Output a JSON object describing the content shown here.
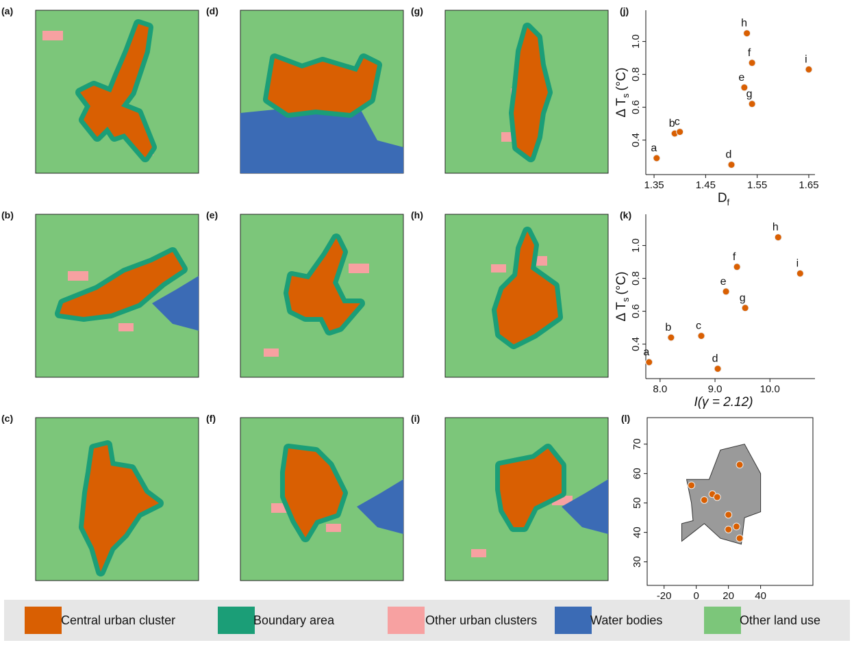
{
  "panels": [
    "(a)",
    "(b)",
    "(c)",
    "(d)",
    "(e)",
    "(f)",
    "(g)",
    "(h)",
    "(i)"
  ],
  "chart_data": [
    {
      "type": "scatter",
      "title": "(j)",
      "x_label": "D",
      "x_label_sub": "f",
      "y_label": "Δ T",
      "y_label_sub": "s",
      "y_label_unit": "(°C)",
      "x": [
        1.355,
        1.39,
        1.4,
        1.5,
        1.525,
        1.54,
        1.54,
        1.53,
        1.65
      ],
      "values": [
        0.29,
        0.44,
        0.45,
        0.25,
        0.72,
        0.87,
        0.62,
        1.05,
        0.83
      ],
      "point_labels": [
        "a",
        "b",
        "c",
        "d",
        "e",
        "f",
        "g",
        "h",
        "i"
      ],
      "color": "#d95f02",
      "xlim": [
        1.334,
        1.662
      ],
      "xticks": [
        1.35,
        1.45,
        1.55,
        1.65
      ],
      "ylim": [
        0.19,
        1.19
      ],
      "yticks": [
        0.4,
        0.6,
        0.8,
        {
          "value": 1,
          "label": "1.0"
        }
      ]
    },
    {
      "type": "scatter",
      "title": "(k)",
      "x_label": "I(γ = 2.12)",
      "y_label": "Δ T",
      "y_label_sub": "s",
      "y_label_unit": "(°C)",
      "x": [
        7.8,
        8.2,
        8.75,
        9.05,
        9.2,
        9.4,
        9.55,
        10.15,
        10.55
      ],
      "values": [
        0.29,
        0.44,
        0.45,
        0.25,
        0.72,
        0.87,
        0.62,
        1.05,
        0.83
      ],
      "point_labels": [
        "a",
        "b",
        "c",
        "d",
        "e",
        "f",
        "g",
        "h",
        "i"
      ],
      "color": "#d95f02",
      "xlim": [
        7.74,
        10.82
      ],
      "xticks": [
        {
          "value": 8,
          "label": "8.0"
        },
        {
          "value": 9,
          "label": "9.0"
        },
        {
          "value": 10,
          "label": "10.0"
        }
      ],
      "ylim": [
        0.19,
        1.19
      ],
      "yticks": [
        0.4,
        0.6,
        0.8,
        {
          "value": 1,
          "label": "1.0"
        }
      ]
    },
    {
      "type": "map",
      "title": "(l)",
      "x": [
        27,
        -3,
        5,
        10,
        13,
        20,
        20,
        25,
        27
      ],
      "values": [
        63,
        56,
        51,
        53,
        52,
        46,
        41,
        42,
        38
      ],
      "color": "#d95f02",
      "xlim": [
        -30.5,
        72.5
      ],
      "xticks": [
        -20,
        0,
        20,
        40
      ],
      "ylim": [
        22,
        79
      ],
      "yticks": [
        30,
        40,
        50,
        60,
        70
      ]
    }
  ],
  "legend": [
    {
      "label": "Central urban cluster",
      "color": "#d95f02"
    },
    {
      "label": "Boundary area",
      "color": "#1b9e77"
    },
    {
      "label": "Other urban clusters",
      "color": "#f7a1a1"
    },
    {
      "label": "Water bodies",
      "color": "#3b6bb5"
    },
    {
      "label": "Other land use",
      "color": "#7cc67a"
    }
  ]
}
